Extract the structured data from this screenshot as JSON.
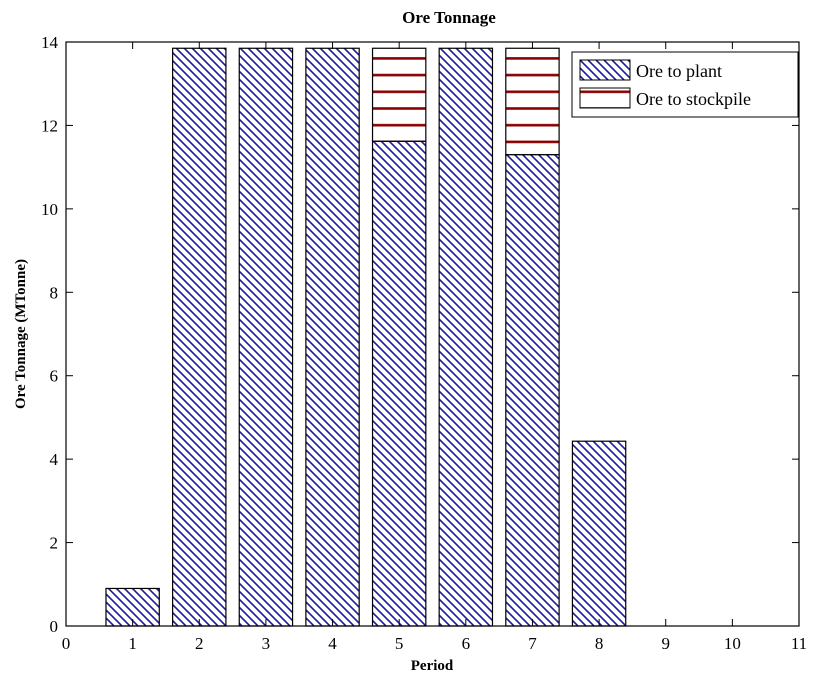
{
  "chart_data": {
    "type": "bar",
    "stacked": true,
    "title": "Ore Tonnage",
    "xlabel": "Period",
    "ylabel": "Ore Tonnage (MTonne)",
    "xlim": [
      0,
      11
    ],
    "ylim": [
      0,
      14
    ],
    "x_ticks": [
      "0",
      "1",
      "2",
      "3",
      "4",
      "5",
      "6",
      "7",
      "8",
      "9",
      "10",
      "11"
    ],
    "y_ticks": [
      "0",
      "2",
      "4",
      "6",
      "8",
      "10",
      "12",
      "14"
    ],
    "categories": [
      1,
      2,
      3,
      4,
      5,
      6,
      7,
      8
    ],
    "series": [
      {
        "name": "Ore to plant",
        "values": [
          0.9,
          13.85,
          13.85,
          13.85,
          11.62,
          13.85,
          11.3,
          4.43
        ],
        "color": "#1a1a9a",
        "pattern": "diagonal-hatch"
      },
      {
        "name": "Ore to stockpile",
        "values": [
          0,
          0,
          0,
          0,
          2.23,
          0,
          2.55,
          0
        ],
        "color": "#8b0000",
        "pattern": "horizontal-lines"
      }
    ],
    "legend": "top-right",
    "grid": false
  }
}
